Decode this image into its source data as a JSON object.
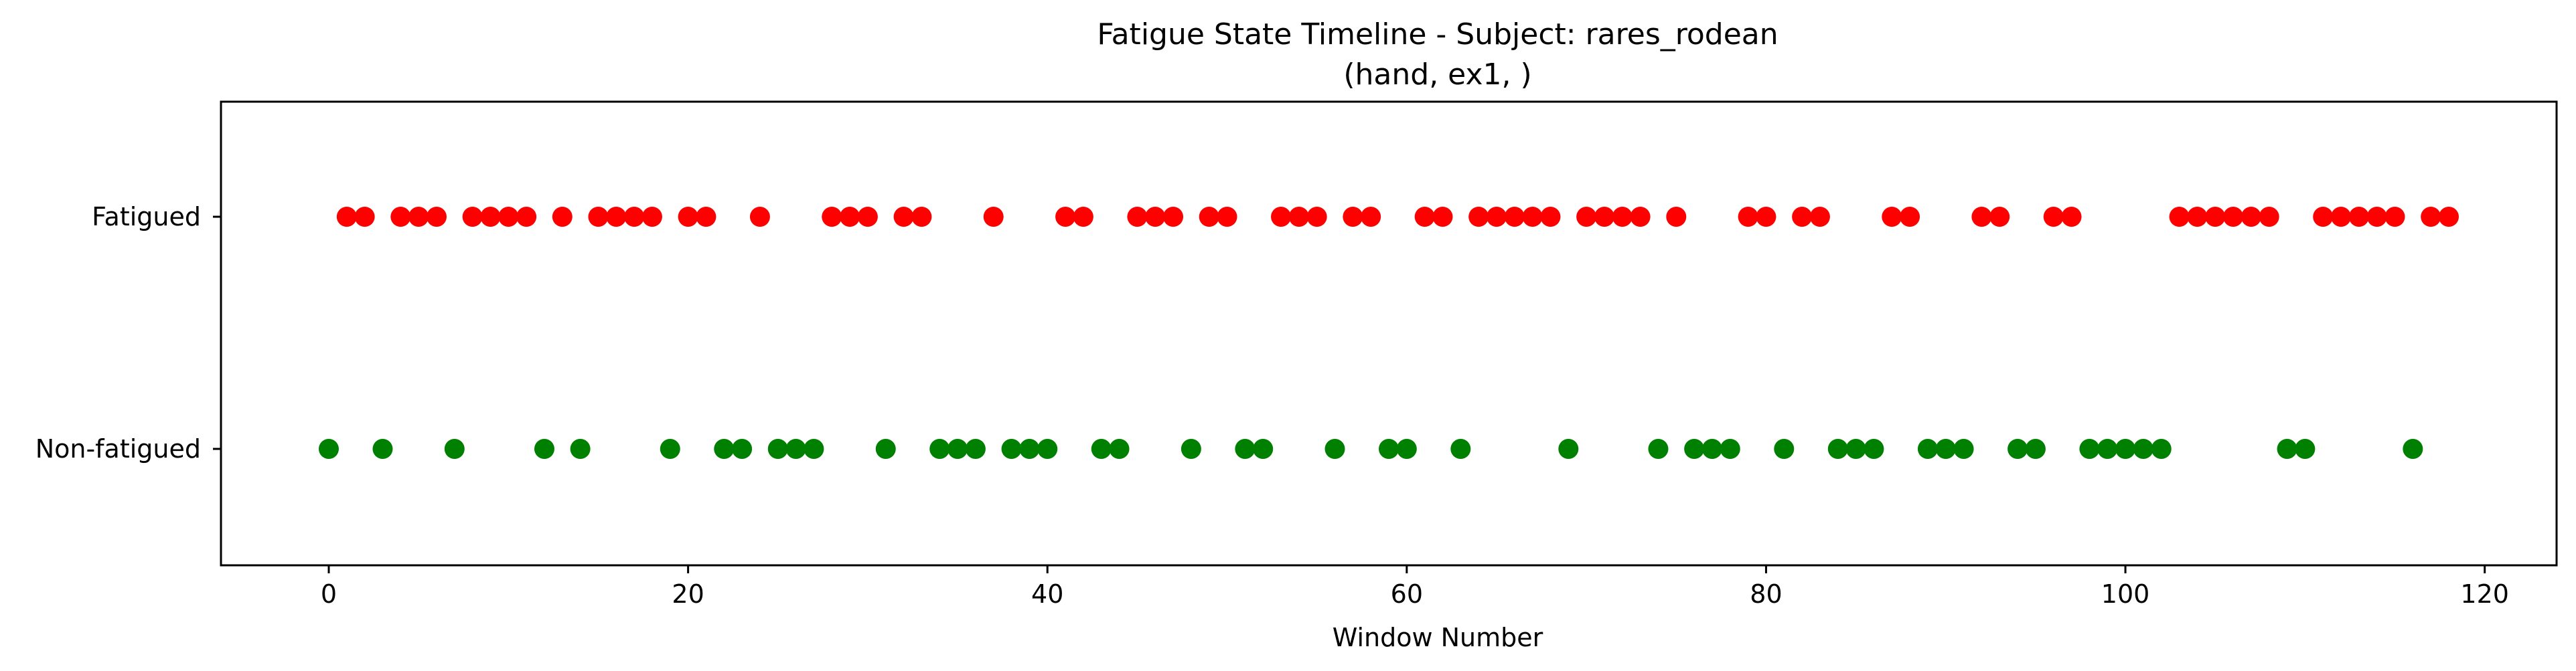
{
  "chart_data": {
    "type": "scatter",
    "title": "Fatigue State Timeline - Subject: rares_rodean",
    "subtitle": "(hand, ex1, )",
    "xlabel": "Window Number",
    "ylabel": "",
    "xlim": [
      -6,
      124
    ],
    "xticks": [
      "0",
      "20",
      "40",
      "60",
      "80",
      "100",
      "120"
    ],
    "xtick_values": [
      0,
      20,
      40,
      60,
      80,
      100,
      120
    ],
    "y_categories": [
      "Non-fatigued",
      "Fatigued"
    ],
    "grid": false,
    "legend": "none",
    "colors": {
      "Fatigued": "#ff0000",
      "Non-fatigued": "#008000"
    },
    "series": [
      {
        "category": "Fatigued",
        "x": [
          1,
          2,
          4,
          5,
          6,
          8,
          9,
          10,
          11,
          13,
          15,
          16,
          17,
          18,
          20,
          21,
          24,
          28,
          29,
          30,
          32,
          33,
          37,
          41,
          42,
          45,
          46,
          47,
          49,
          50,
          53,
          54,
          55,
          57,
          58,
          61,
          62,
          64,
          65,
          66,
          67,
          68,
          70,
          71,
          72,
          73,
          75,
          79,
          80,
          82,
          83,
          87,
          88,
          92,
          93,
          96,
          97,
          103,
          104,
          105,
          106,
          107,
          108,
          111,
          112,
          113,
          114,
          115,
          117,
          118
        ]
      },
      {
        "category": "Non-fatigued",
        "x": [
          0,
          3,
          7,
          12,
          14,
          19,
          22,
          23,
          25,
          26,
          27,
          31,
          34,
          35,
          36,
          38,
          39,
          40,
          43,
          44,
          48,
          51,
          52,
          56,
          59,
          60,
          63,
          69,
          74,
          76,
          77,
          78,
          81,
          84,
          85,
          86,
          89,
          90,
          91,
          94,
          95,
          98,
          99,
          100,
          101,
          102,
          109,
          110,
          116
        ]
      }
    ]
  }
}
